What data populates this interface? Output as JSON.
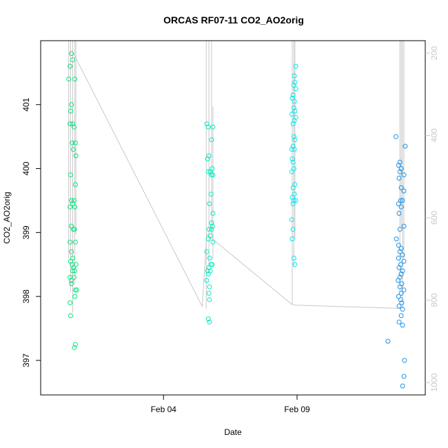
{
  "chart_data": {
    "type": "scatter",
    "title": "ORCAS RF07-11 CO2_AO2orig",
    "xlabel": "Date",
    "ylabel": "CO2_AO2orig",
    "x_tick_labels": [
      {
        "label": "Feb 04",
        "day": 4
      },
      {
        "label": "Feb 09",
        "day": 9
      }
    ],
    "xlim_days": [
      -0.6,
      13.8
    ],
    "ylim": [
      396.46,
      402.0
    ],
    "y_ticks": [
      397,
      398,
      399,
      400,
      401
    ],
    "y2_ticks": [
      200,
      400,
      600,
      800,
      1000
    ],
    "y2lim_reversed": [
      1030,
      170
    ],
    "pressure_line_color": "#c8c8c8",
    "grid": false,
    "series": [
      {
        "color": "#00e87a",
        "points": [
          [
            0.45,
            401.4
          ],
          [
            0.5,
            401.6
          ],
          [
            0.55,
            401.8
          ],
          [
            0.6,
            401.7
          ],
          [
            0.68,
            401.4
          ],
          [
            0.52,
            400.9
          ],
          [
            0.55,
            401.0
          ],
          [
            0.6,
            400.7
          ],
          [
            0.5,
            400.7
          ],
          [
            0.58,
            400.4
          ],
          [
            0.65,
            400.65
          ],
          [
            0.7,
            400.4
          ],
          [
            0.62,
            400.3
          ],
          [
            0.72,
            400.2
          ],
          [
            0.52,
            399.9
          ],
          [
            0.7,
            399.75
          ],
          [
            0.55,
            399.5
          ],
          [
            0.6,
            399.45
          ],
          [
            0.65,
            399.5
          ],
          [
            0.5,
            399.4
          ],
          [
            0.68,
            399.4
          ],
          [
            0.55,
            399.1
          ],
          [
            0.62,
            399.05
          ],
          [
            0.67,
            399.05
          ],
          [
            0.5,
            398.85
          ],
          [
            0.7,
            398.85
          ],
          [
            0.55,
            398.7
          ],
          [
            0.6,
            398.6
          ],
          [
            0.52,
            398.55
          ],
          [
            0.58,
            398.5
          ],
          [
            0.63,
            398.45
          ],
          [
            0.68,
            398.4
          ],
          [
            0.72,
            398.5
          ],
          [
            0.6,
            398.4
          ],
          [
            0.5,
            398.3
          ],
          [
            0.55,
            398.25
          ],
          [
            0.65,
            398.3
          ],
          [
            0.7,
            398.1
          ],
          [
            0.75,
            398.1
          ],
          [
            0.55,
            398.2
          ],
          [
            0.68,
            398.0
          ],
          [
            0.5,
            397.9
          ],
          [
            0.52,
            397.7
          ],
          [
            0.66,
            397.2
          ],
          [
            0.7,
            397.25
          ]
        ]
      },
      {
        "color": "#00ecc3",
        "points": [
          [
            5.62,
            400.7
          ],
          [
            5.68,
            400.65
          ],
          [
            5.85,
            400.65
          ],
          [
            5.8,
            400.45
          ],
          [
            5.7,
            400.2
          ],
          [
            5.65,
            400.15
          ],
          [
            5.82,
            400.0
          ],
          [
            5.75,
            399.95
          ],
          [
            5.68,
            399.95
          ],
          [
            5.85,
            399.9
          ],
          [
            5.8,
            399.9
          ],
          [
            5.78,
            399.6
          ],
          [
            5.72,
            399.45
          ],
          [
            5.85,
            399.3
          ],
          [
            5.8,
            399.15
          ],
          [
            5.83,
            399.1
          ],
          [
            5.7,
            399.05
          ],
          [
            5.8,
            399.05
          ],
          [
            5.75,
            398.95
          ],
          [
            5.68,
            398.9
          ],
          [
            5.85,
            398.85
          ],
          [
            5.62,
            398.7
          ],
          [
            5.73,
            398.6
          ],
          [
            5.78,
            398.5
          ],
          [
            5.82,
            398.5
          ],
          [
            5.7,
            398.45
          ],
          [
            5.75,
            398.4
          ],
          [
            5.65,
            398.4
          ],
          [
            5.68,
            398.35
          ],
          [
            5.72,
            398.15
          ],
          [
            5.62,
            398.25
          ],
          [
            5.7,
            398.05
          ],
          [
            5.72,
            397.95
          ],
          [
            5.68,
            397.65
          ],
          [
            5.72,
            397.6
          ]
        ]
      },
      {
        "color": "#00e8ee",
        "points": [
          [
            8.95,
            401.6
          ],
          [
            8.9,
            401.45
          ],
          [
            8.88,
            401.3
          ],
          [
            8.92,
            401.35
          ],
          [
            8.95,
            401.25
          ],
          [
            8.85,
            401.15
          ],
          [
            8.82,
            401.1
          ],
          [
            8.9,
            401.05
          ],
          [
            8.92,
            400.9
          ],
          [
            8.88,
            400.95
          ],
          [
            8.8,
            400.85
          ],
          [
            8.85,
            400.7
          ],
          [
            8.9,
            400.75
          ],
          [
            8.95,
            400.8
          ],
          [
            8.88,
            400.5
          ],
          [
            8.92,
            400.45
          ],
          [
            8.85,
            400.35
          ],
          [
            8.8,
            400.3
          ],
          [
            8.9,
            400.3
          ],
          [
            8.82,
            400.15
          ],
          [
            8.85,
            400.1
          ],
          [
            8.88,
            400.0
          ],
          [
            8.8,
            399.95
          ],
          [
            8.92,
            399.75
          ],
          [
            8.85,
            399.7
          ],
          [
            8.9,
            399.6
          ],
          [
            8.82,
            399.55
          ],
          [
            8.88,
            399.5
          ],
          [
            8.95,
            399.5
          ],
          [
            8.85,
            399.45
          ],
          [
            8.8,
            399.2
          ],
          [
            8.85,
            399.05
          ],
          [
            8.82,
            398.9
          ],
          [
            8.88,
            398.6
          ],
          [
            8.92,
            398.5
          ]
        ]
      },
      {
        "color": "#1993ea",
        "points": [
          [
            12.7,
            400.5
          ],
          [
            13.05,
            400.35
          ],
          [
            12.85,
            400.1
          ],
          [
            12.8,
            400.05
          ],
          [
            12.9,
            400.0
          ],
          [
            12.85,
            399.95
          ],
          [
            13.0,
            399.9
          ],
          [
            12.82,
            399.85
          ],
          [
            12.9,
            399.7
          ],
          [
            13.0,
            399.65
          ],
          [
            12.88,
            399.5
          ],
          [
            12.95,
            399.5
          ],
          [
            12.8,
            399.45
          ],
          [
            12.9,
            399.4
          ],
          [
            12.82,
            399.3
          ],
          [
            13.0,
            399.1
          ],
          [
            12.85,
            399.05
          ],
          [
            12.72,
            398.9
          ],
          [
            12.8,
            398.8
          ],
          [
            12.9,
            398.75
          ],
          [
            12.85,
            398.7
          ],
          [
            12.95,
            398.65
          ],
          [
            12.8,
            398.6
          ],
          [
            13.0,
            398.55
          ],
          [
            12.88,
            398.5
          ],
          [
            12.82,
            398.45
          ],
          [
            12.95,
            398.4
          ],
          [
            12.9,
            398.35
          ],
          [
            12.85,
            398.3
          ],
          [
            12.78,
            398.25
          ],
          [
            12.92,
            398.2
          ],
          [
            12.85,
            398.15
          ],
          [
            13.0,
            398.1
          ],
          [
            12.9,
            398.05
          ],
          [
            12.8,
            398.0
          ],
          [
            12.88,
            397.95
          ],
          [
            12.92,
            397.9
          ],
          [
            12.82,
            397.85
          ],
          [
            12.95,
            397.8
          ],
          [
            12.9,
            397.7
          ],
          [
            12.82,
            397.6
          ],
          [
            12.95,
            397.55
          ],
          [
            12.4,
            397.3
          ],
          [
            13.02,
            397.0
          ],
          [
            13.0,
            396.75
          ],
          [
            12.95,
            396.6
          ]
        ]
      }
    ]
  }
}
